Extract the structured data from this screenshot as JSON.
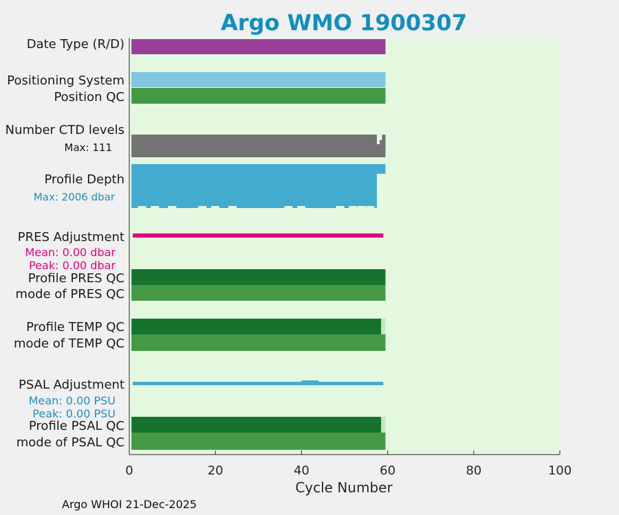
{
  "chart_data": {
    "type": "bar",
    "orientation": "horizontal",
    "title": "Argo WMO 1900307",
    "xlabel": "Cycle Number",
    "xlim": [
      0,
      100
    ],
    "xticks": [
      0,
      20,
      40,
      60,
      80,
      100
    ],
    "tick_labels": [
      "0",
      "20",
      "40",
      "60",
      "80",
      "100"
    ],
    "rows": [
      {
        "key": "date_type",
        "label": "Date Type (R/D)",
        "color": "#993d99",
        "start": 0.5,
        "end": 59.5
      },
      {
        "key": "positioning_system",
        "label": "Positioning System",
        "color": "#80c6e0",
        "start": 0.5,
        "end": 59.5
      },
      {
        "key": "position_qc",
        "label": "Position QC",
        "color": "#459945",
        "start": 0.5,
        "end": 59.5
      },
      {
        "key": "number_ctd_levels",
        "label": "Number CTD levels",
        "color": "#737373",
        "start": 0.5,
        "end": 59.5,
        "sublabel": "Max: 111",
        "sublabel_color": "#111111"
      },
      {
        "key": "profile_depth",
        "label": "Profile Depth",
        "color": "#43abd0",
        "start": 0.5,
        "end": 59.5,
        "sublabel": "Max: 2006 dbar",
        "sublabel_color": "#1f8fbf",
        "max_dbar": 2006
      },
      {
        "key": "pres_adjustment",
        "label": "PRES Adjustment",
        "color": "#e6007e",
        "start": 0.8,
        "end": 59.0,
        "mean_label": "Mean: 0.00 dbar",
        "peak_label": "Peak: 0.00 dbar",
        "mean": 0.0,
        "peak": 0.0
      },
      {
        "key": "profile_pres_qc",
        "label": "Profile PRES QC",
        "color": "#16732d",
        "start": 0.5,
        "end": 59.5
      },
      {
        "key": "mode_pres_qc",
        "label": "mode of PRES QC",
        "color": "#459945",
        "start": 0.5,
        "end": 59.5
      },
      {
        "key": "profile_temp_qc",
        "label": "Profile TEMP QC",
        "color": "#16732d",
        "start": 0.5,
        "end": 58.5,
        "tail_color": "#c4e6c4",
        "tail_end": 59.5
      },
      {
        "key": "mode_temp_qc",
        "label": "mode of TEMP QC",
        "color": "#459945",
        "start": 0.5,
        "end": 59.5
      },
      {
        "key": "psal_adjustment",
        "label": "PSAL Adjustment",
        "color": "#43abd0",
        "start": 0.8,
        "end": 59.0,
        "mean_label": "Mean: 0.00 PSU",
        "peak_label": "Peak: 0.00 PSU",
        "mean": 0.0,
        "peak": 0.0
      },
      {
        "key": "profile_psal_qc",
        "label": "Profile PSAL QC",
        "color": "#16732d",
        "start": 0.5,
        "end": 58.5,
        "tail_color": "#c4e6c4",
        "tail_end": 59.5
      },
      {
        "key": "mode_psal_qc",
        "label": "mode of PSAL QC",
        "color": "#459945",
        "start": 0.5,
        "end": 59.5
      }
    ],
    "ctd_level_drop": {
      "cycles_full_from": 0.5,
      "cycles_full_to": 57.5,
      "cycle_dip": 58.0
    },
    "profile_depth_notch_cycles": [
      2,
      5,
      9,
      16,
      19,
      23,
      36,
      39,
      48,
      51,
      53,
      55
    ],
    "psal_adjustment_bump": {
      "from": 40,
      "to": 44
    }
  },
  "colors": {
    "title": "#128fbf",
    "plot_bg": "#e4f8e0",
    "axis": "#262626"
  },
  "footer": "Argo WHOI 21-Dec-2025"
}
